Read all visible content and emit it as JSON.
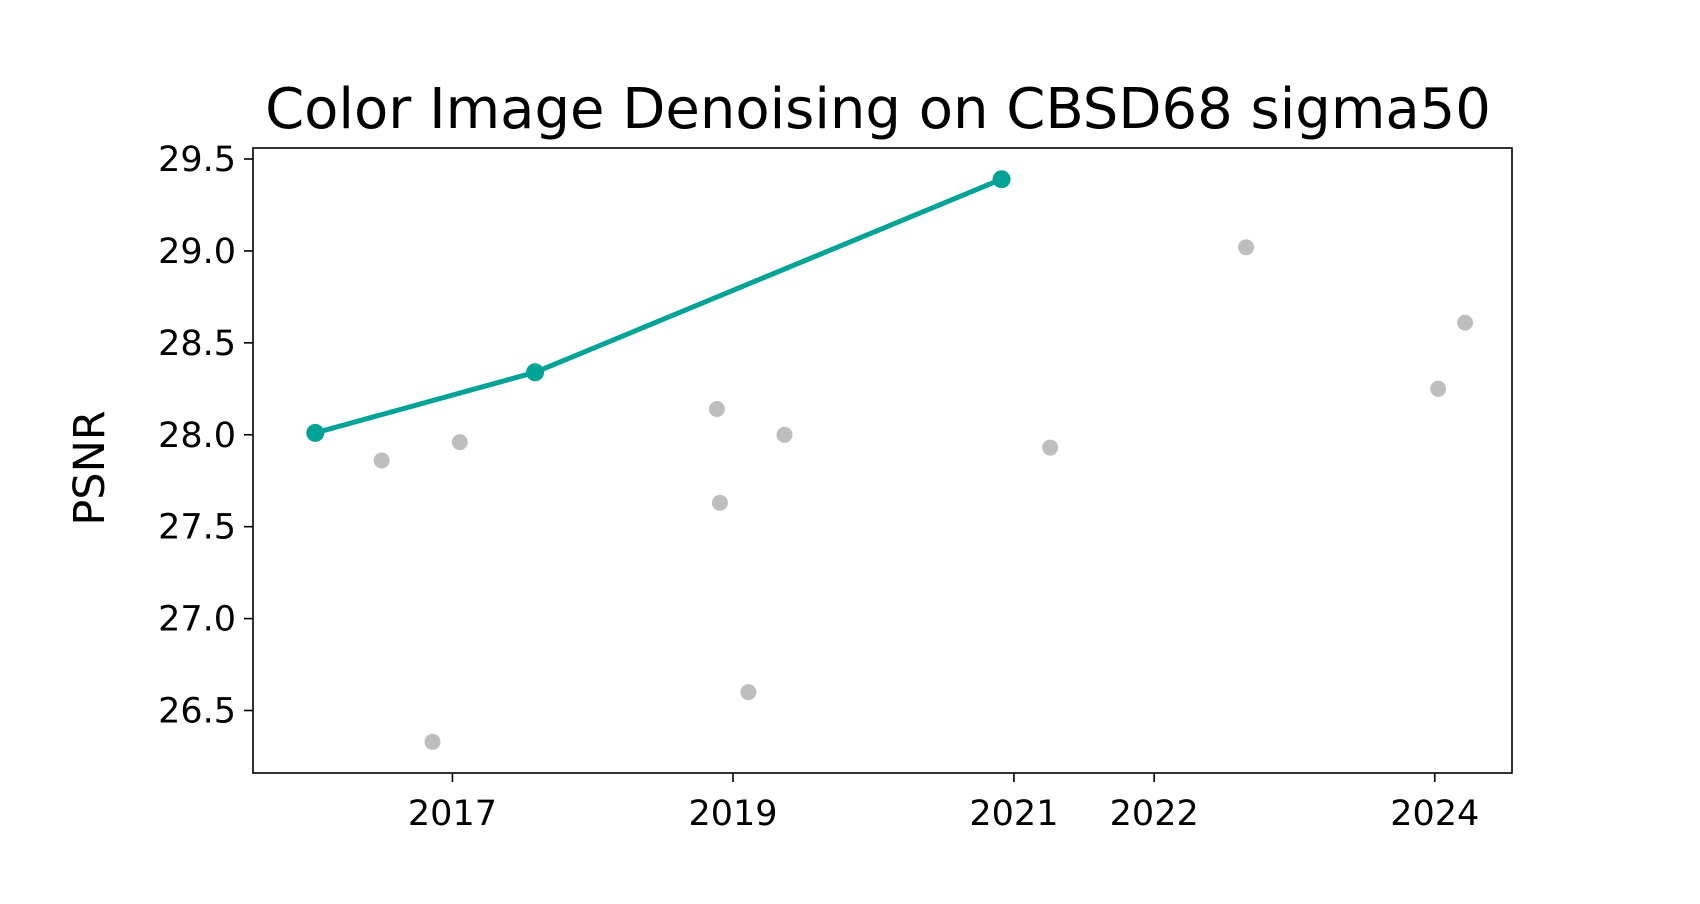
{
  "chart_data": {
    "type": "scatter",
    "title": "Color Image Denoising on CBSD68 sigma50",
    "xlabel": "",
    "ylabel": "PSNR",
    "x_ticks": [
      {
        "value": "2017-01-01",
        "label": "2017"
      },
      {
        "value": "2019-01-01",
        "label": "2019"
      },
      {
        "value": "2021-01-01",
        "label": "2021"
      },
      {
        "value": "2022-01-01",
        "label": "2022"
      },
      {
        "value": "2024-01-01",
        "label": "2024"
      }
    ],
    "y_ticks": [
      {
        "value": 26.5,
        "label": "26.5"
      },
      {
        "value": 27.0,
        "label": "27.0"
      },
      {
        "value": 27.5,
        "label": "27.5"
      },
      {
        "value": 28.0,
        "label": "28.0"
      },
      {
        "value": 28.5,
        "label": "28.5"
      },
      {
        "value": 29.0,
        "label": "29.0"
      },
      {
        "value": 29.5,
        "label": "29.5"
      }
    ],
    "xlim": [
      "2015-08-01",
      "2024-07-20"
    ],
    "ylim": [
      26.16,
      29.56
    ],
    "grid": false,
    "series": [
      {
        "role": "state-of-the-art",
        "style": "line-markers",
        "color": "#00a396",
        "points": [
          {
            "x": "2016-01-10",
            "y": 28.01
          },
          {
            "x": "2017-08-04",
            "y": 28.34
          },
          {
            "x": "2020-11-30",
            "y": 29.39
          }
        ]
      },
      {
        "role": "other-methods",
        "style": "markers",
        "color": "#bebebe",
        "points": [
          {
            "x": "2016-07-01",
            "y": 27.86
          },
          {
            "x": "2016-11-10",
            "y": 26.33
          },
          {
            "x": "2017-01-20",
            "y": 27.96
          },
          {
            "x": "2018-11-20",
            "y": 28.14
          },
          {
            "x": "2018-11-28",
            "y": 27.63
          },
          {
            "x": "2019-02-10",
            "y": 26.6
          },
          {
            "x": "2019-05-15",
            "y": 28.0
          },
          {
            "x": "2021-04-05",
            "y": 27.93
          },
          {
            "x": "2022-08-28",
            "y": 29.02
          },
          {
            "x": "2024-01-10",
            "y": 28.25
          },
          {
            "x": "2024-03-20",
            "y": 28.61
          }
        ]
      }
    ]
  }
}
